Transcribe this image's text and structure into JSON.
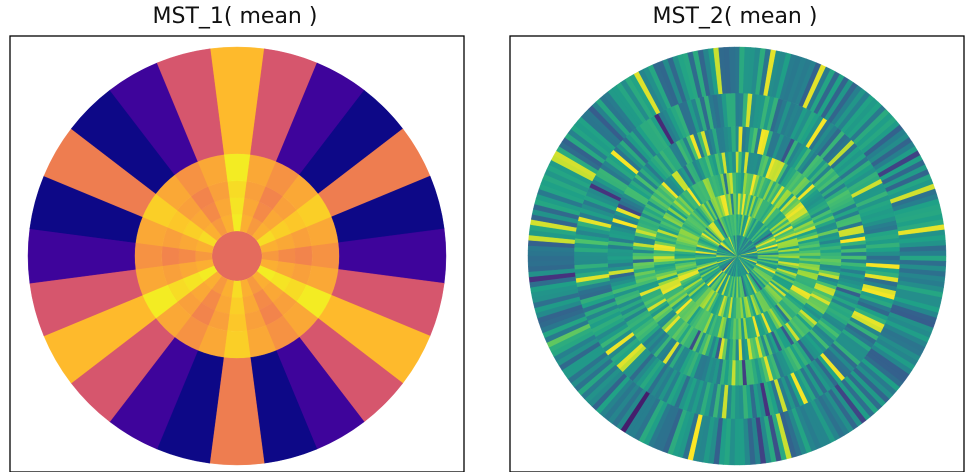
{
  "chart_data": [
    {
      "type": "heatmap",
      "title": "MST_1( mean )",
      "colormap": "plasma",
      "grid": false,
      "ring_radius_fraction_edges": [
        0.0,
        0.07,
        0.12,
        0.2,
        0.28,
        0.36,
        0.49,
        1.0
      ],
      "rings": [
        {
          "mode": "uniform",
          "values": [
            0.55
          ]
        },
        {
          "mode": "uniform",
          "values": [
            0.62
          ]
        },
        {
          "mode": "sectors",
          "values": [
            0.97,
            0.82,
            0.76,
            0.82,
            0.93,
            0.82,
            0.76,
            0.82,
            0.97,
            0.82,
            0.76,
            0.82,
            0.93,
            0.82,
            0.76,
            0.82,
            0.97,
            0.82,
            0.76,
            0.82,
            0.93,
            0.82,
            0.76,
            0.82
          ]
        },
        {
          "mode": "sectors",
          "values": [
            0.95,
            0.8,
            0.72,
            0.8,
            0.9,
            0.8,
            0.72,
            0.8,
            0.95,
            0.8,
            0.72,
            0.8,
            0.9,
            0.8,
            0.72,
            0.8,
            0.95,
            0.8,
            0.72,
            0.8,
            0.9,
            0.8,
            0.72,
            0.8
          ]
        },
        {
          "mode": "sectors",
          "values": [
            0.93,
            0.78,
            0.7,
            0.78,
            0.88,
            0.78,
            0.7,
            0.78,
            0.93,
            0.78,
            0.7,
            0.78,
            0.88,
            0.78,
            0.7,
            0.78,
            0.93,
            0.78,
            0.7,
            0.78,
            0.88,
            0.78,
            0.7,
            0.78
          ]
        },
        {
          "mode": "sectors",
          "values": [
            0.97,
            0.8,
            0.74,
            0.8,
            0.9,
            0.8,
            0.74,
            0.8,
            0.97,
            0.8,
            0.74,
            0.8,
            0.9,
            0.8,
            0.74,
            0.8,
            0.97,
            0.8,
            0.74,
            0.8,
            0.9,
            0.8,
            0.74,
            0.8
          ]
        },
        {
          "mode": "sectors",
          "values": [
            0.85,
            0.55,
            0.1,
            0.0,
            0.68,
            0.0,
            0.1,
            0.55,
            0.85,
            0.55,
            0.1,
            0.0,
            0.68,
            0.0,
            0.1,
            0.55,
            0.85,
            0.55,
            0.1,
            0.0,
            0.68,
            0.0,
            0.1,
            0.55
          ]
        }
      ]
    },
    {
      "type": "heatmap",
      "title": "MST_2( mean )",
      "colormap": "viridis",
      "grid": false,
      "ring_radius_fraction_edges": [
        0.0,
        0.1,
        0.2,
        0.3,
        0.4,
        0.5,
        0.62,
        0.78,
        1.0
      ],
      "rings": [
        {
          "mode": "random",
          "sectors": 96,
          "base": 0.55,
          "spread": 0.14,
          "spikes": 0.08,
          "seed": 11
        },
        {
          "mode": "random",
          "sectors": 120,
          "base": 0.66,
          "spread": 0.16,
          "spikes": 0.1,
          "seed": 23
        },
        {
          "mode": "random",
          "sectors": 150,
          "base": 0.72,
          "spread": 0.16,
          "spikes": 0.12,
          "seed": 37
        },
        {
          "mode": "random",
          "sectors": 170,
          "base": 0.7,
          "spread": 0.16,
          "spikes": 0.12,
          "seed": 41
        },
        {
          "mode": "random",
          "sectors": 190,
          "base": 0.62,
          "spread": 0.17,
          "spikes": 0.1,
          "seed": 53
        },
        {
          "mode": "random",
          "sectors": 210,
          "base": 0.56,
          "spread": 0.16,
          "spikes": 0.08,
          "seed": 67
        },
        {
          "mode": "random",
          "sectors": 230,
          "base": 0.5,
          "spread": 0.16,
          "spikes": 0.07,
          "seed": 71
        },
        {
          "mode": "random",
          "sectors": 250,
          "base": 0.46,
          "spread": 0.16,
          "spikes": 0.07,
          "seed": 89
        }
      ]
    }
  ]
}
